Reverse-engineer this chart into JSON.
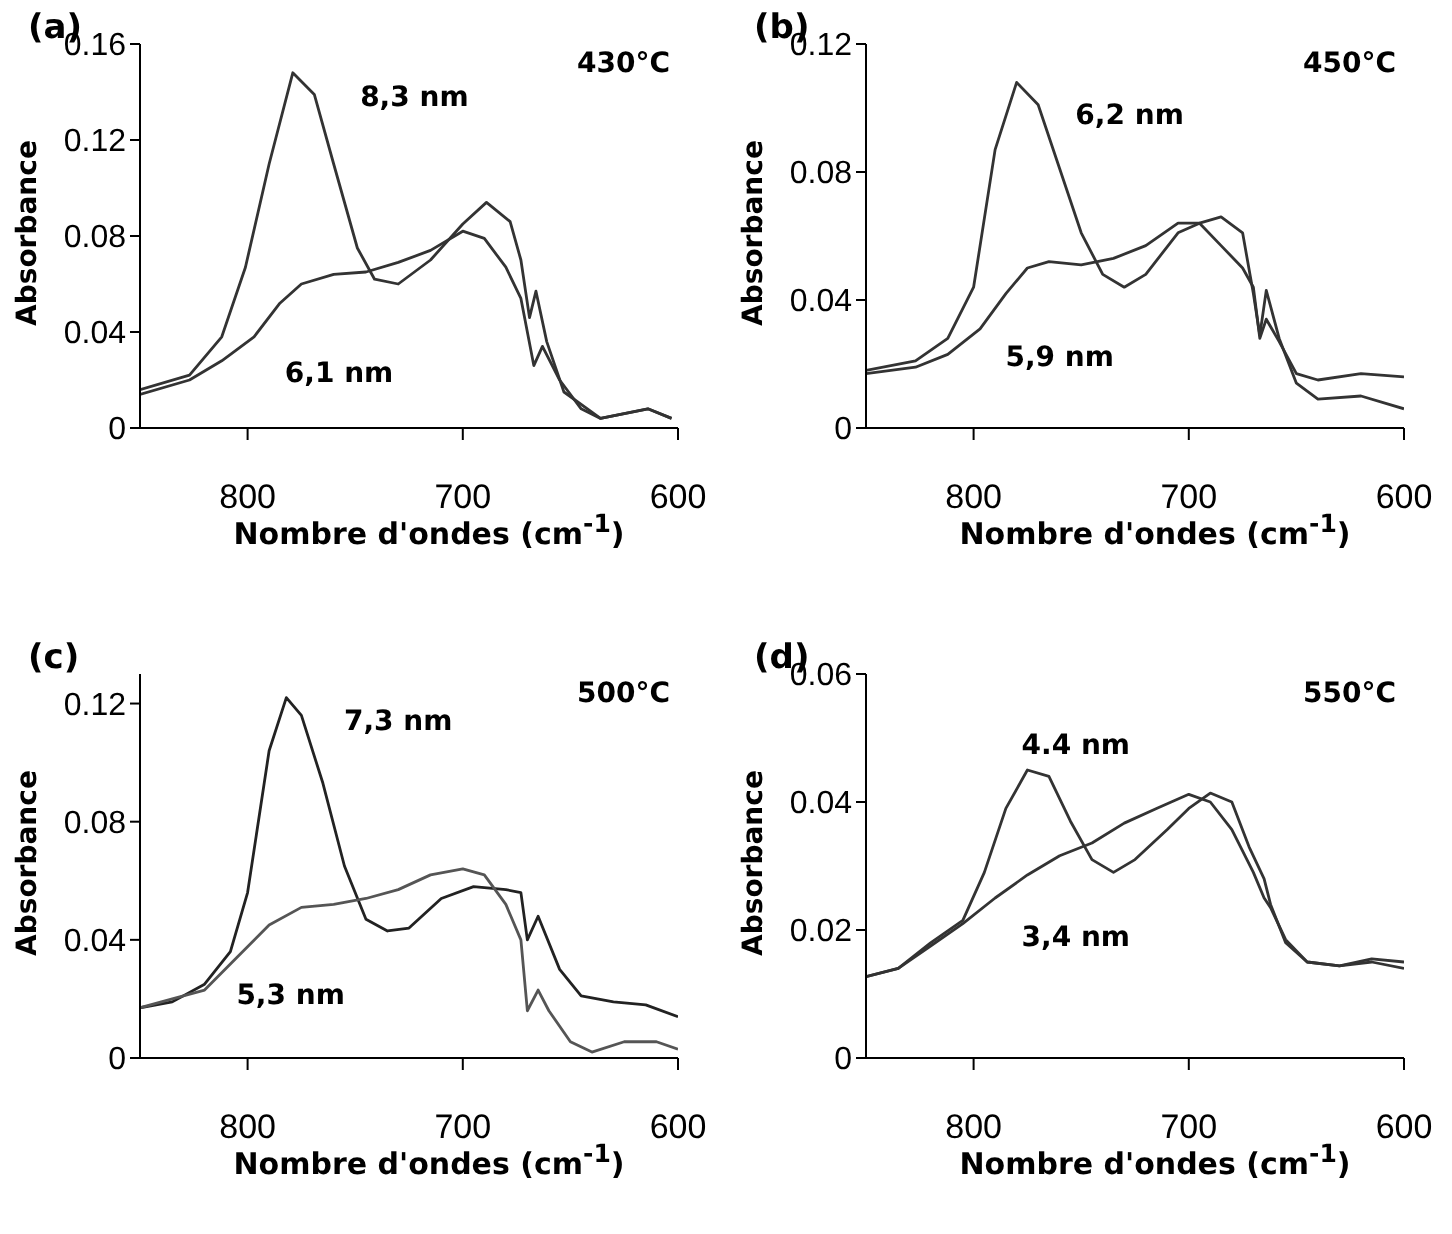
{
  "chart_data": [
    {
      "type": "line",
      "title": "(a)",
      "xlabel": "Nombre d'ondes (cm$^{-1}$)",
      "ylabel": "Absorbance",
      "xlim": [
        850,
        600
      ],
      "xticks": [
        800,
        700,
        600
      ],
      "ylim": [
        0,
        0.16
      ],
      "yticks": [
        0,
        0.04,
        0.08,
        0.12,
        0.16
      ],
      "annotations": [
        "430°C",
        "8,3 nm",
        "6,1 nm"
      ],
      "series": [
        {
          "color": "#333333",
          "x": [
            850,
            827,
            812,
            801,
            790,
            779,
            769,
            760,
            749,
            741,
            730,
            715,
            700,
            689,
            678,
            673,
            669,
            666,
            661,
            653,
            636,
            614,
            603
          ],
          "values": [
            0.016,
            0.022,
            0.038,
            0.067,
            0.11,
            0.148,
            0.139,
            0.11,
            0.075,
            0.062,
            0.06,
            0.07,
            0.085,
            0.094,
            0.086,
            0.07,
            0.046,
            0.057,
            0.036,
            0.015,
            0.004,
            0.008,
            0.004
          ]
        },
        {
          "color": "#333333",
          "x": [
            850,
            827,
            812,
            797,
            785,
            775,
            760,
            745,
            730,
            715,
            700,
            690,
            680,
            673,
            667,
            663,
            655,
            645,
            636,
            614,
            603
          ],
          "values": [
            0.014,
            0.02,
            0.028,
            0.038,
            0.052,
            0.06,
            0.064,
            0.065,
            0.069,
            0.074,
            0.082,
            0.079,
            0.067,
            0.054,
            0.026,
            0.034,
            0.02,
            0.008,
            0.004,
            0.008,
            0.004
          ]
        }
      ]
    },
    {
      "type": "line",
      "title": "(b)",
      "xlabel": "Nombre d'ondes (cm$^{-1}$)",
      "ylabel": "Absorbance",
      "xlim": [
        850,
        600
      ],
      "xticks": [
        800,
        700,
        600
      ],
      "ylim": [
        0,
        0.12
      ],
      "yticks": [
        0,
        0.04,
        0.08,
        0.12
      ],
      "annotations": [
        "450°C",
        "6,2 nm",
        "5,9 nm"
      ],
      "series": [
        {
          "color": "#333333",
          "x": [
            850,
            827,
            812,
            800,
            790,
            780,
            770,
            760,
            750,
            740,
            730,
            720,
            705,
            695,
            685,
            675,
            670,
            667,
            664,
            658,
            650,
            640,
            620,
            600
          ],
          "values": [
            0.018,
            0.021,
            0.028,
            0.044,
            0.087,
            0.108,
            0.101,
            0.081,
            0.061,
            0.048,
            0.044,
            0.048,
            0.061,
            0.064,
            0.066,
            0.061,
            0.042,
            0.029,
            0.043,
            0.028,
            0.014,
            0.009,
            0.01,
            0.006
          ]
        },
        {
          "color": "#333333",
          "x": [
            850,
            827,
            812,
            797,
            785,
            775,
            765,
            750,
            735,
            720,
            705,
            695,
            685,
            675,
            670,
            667,
            664,
            658,
            650,
            640,
            620,
            600
          ],
          "values": [
            0.017,
            0.019,
            0.023,
            0.031,
            0.042,
            0.05,
            0.052,
            0.051,
            0.053,
            0.057,
            0.064,
            0.064,
            0.057,
            0.05,
            0.044,
            0.028,
            0.034,
            0.027,
            0.017,
            0.015,
            0.017,
            0.016
          ]
        }
      ]
    },
    {
      "type": "line",
      "title": "(c)",
      "xlabel": "Nombre d'ondes (cm$^{-1}$)",
      "ylabel": "Absorbance",
      "xlim": [
        850,
        600
      ],
      "xticks": [
        800,
        700,
        600
      ],
      "ylim": [
        0,
        0.13
      ],
      "yticks": [
        0,
        0.04,
        0.08,
        0.12
      ],
      "annotations": [
        "500°C",
        "7,3 nm",
        "5,3 nm"
      ],
      "series": [
        {
          "color": "#222222",
          "x": [
            850,
            835,
            820,
            808,
            800,
            790,
            782,
            775,
            765,
            755,
            745,
            735,
            725,
            710,
            695,
            680,
            673,
            670,
            665,
            655,
            645,
            630,
            615,
            600
          ],
          "values": [
            0.017,
            0.019,
            0.025,
            0.036,
            0.056,
            0.104,
            0.122,
            0.116,
            0.093,
            0.065,
            0.047,
            0.043,
            0.044,
            0.054,
            0.058,
            0.057,
            0.056,
            0.04,
            0.048,
            0.03,
            0.021,
            0.019,
            0.018,
            0.014
          ]
        },
        {
          "color": "#555555",
          "x": [
            850,
            835,
            820,
            805,
            790,
            775,
            760,
            745,
            730,
            715,
            700,
            690,
            680,
            673,
            670,
            665,
            660,
            650,
            640,
            625,
            610,
            600
          ],
          "values": [
            0.017,
            0.02,
            0.023,
            0.034,
            0.045,
            0.051,
            0.052,
            0.054,
            0.057,
            0.062,
            0.064,
            0.062,
            0.052,
            0.04,
            0.016,
            0.023,
            0.016,
            0.0055,
            0.002,
            0.0055,
            0.0055,
            0.003
          ]
        }
      ]
    },
    {
      "type": "line",
      "title": "(d)",
      "xlabel": "Nombre d'ondes (cm$^{-1}$)",
      "ylabel": "Absorbance",
      "xlim": [
        850,
        600
      ],
      "xticks": [
        800,
        700,
        600
      ],
      "ylim": [
        0,
        0.06
      ],
      "yticks": [
        0,
        0.02,
        0.04,
        0.06
      ],
      "annotations": [
        "550°C",
        "4.4 nm",
        "3,4 nm"
      ],
      "series": [
        {
          "color": "#333333",
          "x": [
            850,
            835,
            820,
            805,
            795,
            785,
            775,
            765,
            755,
            745,
            735,
            725,
            710,
            700,
            690,
            680,
            672,
            665,
            662,
            655,
            645,
            630,
            615,
            600
          ],
          "values": [
            0.0127,
            0.014,
            0.018,
            0.0215,
            0.029,
            0.039,
            0.045,
            0.044,
            0.037,
            0.031,
            0.029,
            0.031,
            0.0357,
            0.039,
            0.0414,
            0.04,
            0.033,
            0.028,
            0.024,
            0.018,
            0.015,
            0.0144,
            0.0155,
            0.015
          ]
        },
        {
          "color": "#333333",
          "x": [
            850,
            835,
            820,
            805,
            790,
            775,
            760,
            745,
            730,
            715,
            700,
            690,
            680,
            670,
            665,
            662,
            655,
            645,
            630,
            615,
            600
          ],
          "values": [
            0.0127,
            0.014,
            0.0175,
            0.021,
            0.025,
            0.0286,
            0.0316,
            0.0336,
            0.0367,
            0.039,
            0.0412,
            0.04,
            0.0357,
            0.029,
            0.025,
            0.0235,
            0.0185,
            0.015,
            0.0144,
            0.015,
            0.014
          ]
        }
      ]
    }
  ]
}
